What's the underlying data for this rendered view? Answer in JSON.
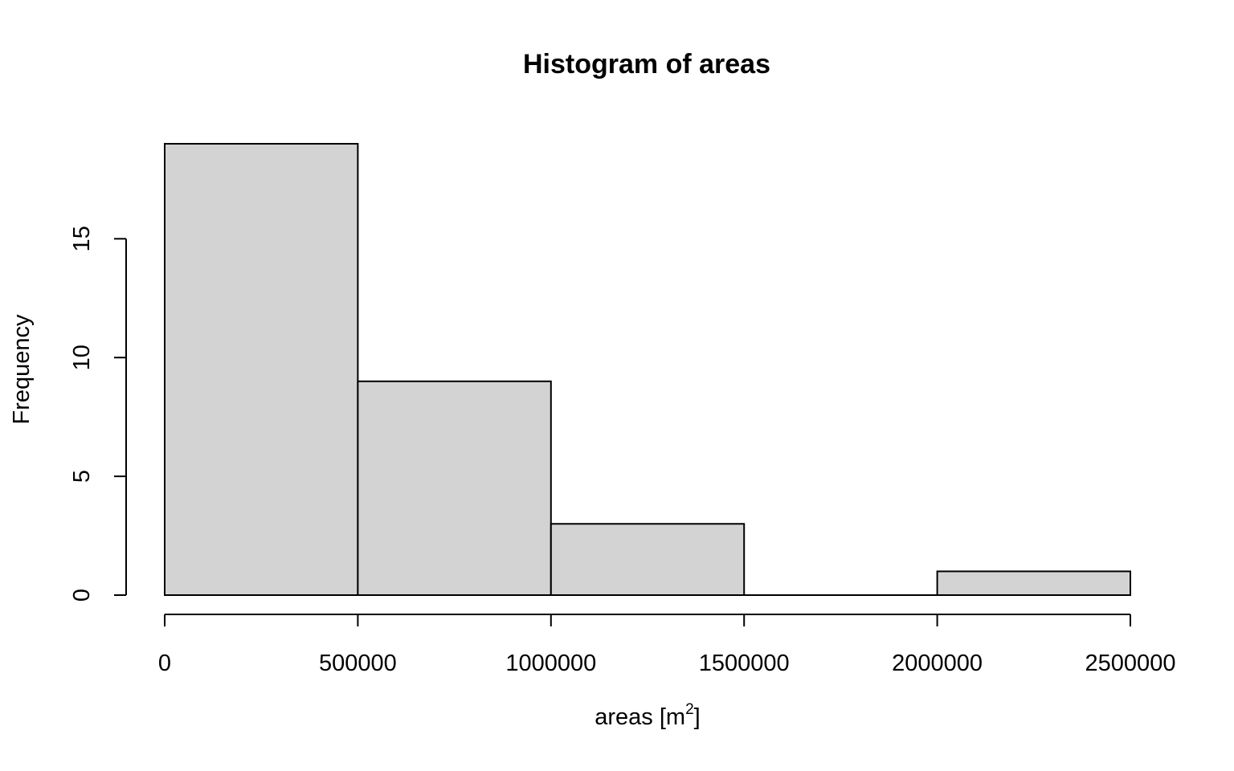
{
  "chart_data": {
    "type": "bar",
    "histogram": true,
    "title": "Histogram of areas",
    "xlabel": {
      "base": "areas [m",
      "superscript": "2",
      "suffix": "]"
    },
    "ylabel": "Frequency",
    "bins": [
      {
        "start": 0,
        "end": 500000,
        "count": 19
      },
      {
        "start": 500000,
        "end": 1000000,
        "count": 9
      },
      {
        "start": 1000000,
        "end": 1500000,
        "count": 3
      },
      {
        "start": 1500000,
        "end": 2000000,
        "count": 0
      },
      {
        "start": 2000000,
        "end": 2500000,
        "count": 1
      }
    ],
    "xlim": [
      0,
      2500000
    ],
    "ylim": [
      0,
      19
    ],
    "x_ticks": [
      0,
      500000,
      1000000,
      1500000,
      2000000,
      2500000
    ],
    "x_tick_labels": [
      "0",
      "500000",
      "1000000",
      "1500000",
      "2000000",
      "2500000"
    ],
    "y_ticks": [
      0,
      5,
      10,
      15
    ],
    "y_tick_labels": [
      "0",
      "5",
      "10",
      "15"
    ],
    "bar_fill": "#d3d3d3",
    "bar_stroke": "#000000",
    "grid": false,
    "legend": "none"
  }
}
